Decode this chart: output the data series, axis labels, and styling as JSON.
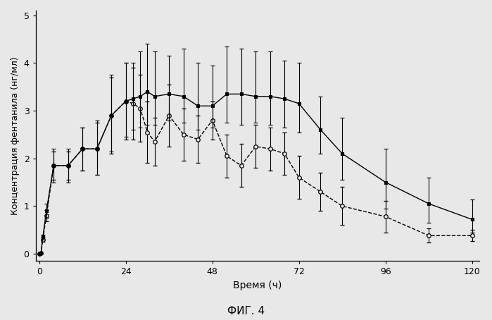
{
  "solid_x": [
    0,
    0.5,
    1,
    2,
    4,
    8,
    12,
    16,
    20,
    24,
    26,
    28,
    30,
    32,
    36,
    40,
    44,
    48,
    52,
    56,
    60,
    64,
    68,
    72,
    78,
    84,
    96,
    108,
    120
  ],
  "solid_y": [
    0,
    0.02,
    0.35,
    0.9,
    1.85,
    1.85,
    2.2,
    2.2,
    2.9,
    3.2,
    3.25,
    3.3,
    3.4,
    3.3,
    3.35,
    3.3,
    3.1,
    3.1,
    3.35,
    3.35,
    3.3,
    3.3,
    3.25,
    3.15,
    2.6,
    2.1,
    1.5,
    1.05,
    0.72
  ],
  "solid_yerr_lo": [
    0,
    0.0,
    0.05,
    0.15,
    0.35,
    0.35,
    0.45,
    0.55,
    0.75,
    0.75,
    0.65,
    0.65,
    0.7,
    0.6,
    0.55,
    0.55,
    0.5,
    0.45,
    0.6,
    0.65,
    0.55,
    0.6,
    0.6,
    0.6,
    0.5,
    0.55,
    0.55,
    0.4,
    0.28
  ],
  "solid_yerr_hi": [
    0,
    0.0,
    0.05,
    0.15,
    0.35,
    0.35,
    0.45,
    0.6,
    0.85,
    0.8,
    0.75,
    0.95,
    1.0,
    0.95,
    0.8,
    1.0,
    0.9,
    0.85,
    1.0,
    0.95,
    0.95,
    0.95,
    0.8,
    0.85,
    0.7,
    0.75,
    0.7,
    0.55,
    0.42
  ],
  "dashed_x": [
    0,
    0.5,
    1,
    2,
    4,
    8,
    12,
    16,
    20,
    24,
    26,
    28,
    30,
    32,
    36,
    40,
    44,
    48,
    52,
    56,
    60,
    64,
    68,
    72,
    78,
    84,
    96,
    108,
    120
  ],
  "dashed_y": [
    0,
    0.02,
    0.3,
    0.8,
    1.85,
    1.85,
    2.2,
    2.2,
    2.9,
    3.2,
    3.15,
    3.05,
    2.55,
    2.35,
    2.9,
    2.5,
    2.4,
    2.8,
    2.05,
    1.85,
    2.25,
    2.2,
    2.1,
    1.6,
    1.3,
    1.0,
    0.78,
    0.38,
    0.38
  ],
  "dashed_yerr_lo": [
    0,
    0.0,
    0.05,
    0.12,
    0.3,
    0.3,
    0.45,
    0.55,
    0.8,
    0.8,
    0.75,
    0.7,
    0.65,
    0.5,
    0.65,
    0.55,
    0.5,
    0.4,
    0.45,
    0.45,
    0.45,
    0.45,
    0.45,
    0.45,
    0.4,
    0.4,
    0.33,
    0.15,
    0.12
  ],
  "dashed_yerr_hi": [
    0,
    0.0,
    0.05,
    0.12,
    0.3,
    0.3,
    0.45,
    0.55,
    0.8,
    0.8,
    0.75,
    0.7,
    0.65,
    0.5,
    0.65,
    0.55,
    0.5,
    0.4,
    0.45,
    0.45,
    0.45,
    0.45,
    0.45,
    0.45,
    0.4,
    0.4,
    0.33,
    0.15,
    0.12
  ],
  "xlabel": "Время (ч)",
  "ylabel": "Концентрация фентанила (нг/мл)",
  "figure_label": "ФИГ. 4",
  "xlim": [
    -1,
    122
  ],
  "ylim": [
    -0.15,
    5.1
  ],
  "xticks": [
    0,
    24,
    48,
    72,
    96,
    120
  ],
  "yticks": [
    0,
    1,
    2,
    3,
    4,
    5
  ],
  "bg_color": "#e8e8e8",
  "ylabel_fontsize": 9,
  "xlabel_fontsize": 10,
  "tick_fontsize": 9,
  "fig_label_fontsize": 11
}
